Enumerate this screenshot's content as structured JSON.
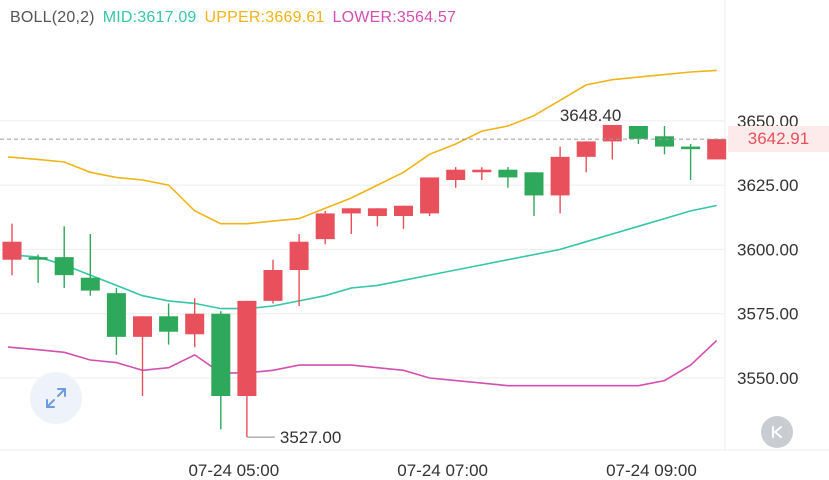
{
  "legend": {
    "name": "BOLL(20,2)",
    "mid": "MID:3617.09",
    "upper": "UPPER:3669.61",
    "lower": "LOWER:3564.57"
  },
  "last_price": "3642.91",
  "high_label": "3648.40",
  "low_label": "3527.00",
  "icons": {
    "expand": "expand-arrows-icon",
    "collapse": "collapse-k-icon"
  },
  "colors": {
    "up": "#e8505b",
    "down": "#2ea85a",
    "mid": "#34c6a8",
    "upper": "#f0b418",
    "lower": "#d44fb0",
    "axis_text": "#333333",
    "grid": "#eeeeee"
  },
  "chart_data": {
    "type": "candlestick",
    "indicator": "BOLL(20,2)",
    "y_ticks": [
      3550.0,
      3575.0,
      3600.0,
      3625.0,
      3650.0
    ],
    "y_tick_labels": [
      "3550.00",
      "3575.00",
      "3600.00",
      "3625.00",
      "3650.00"
    ],
    "ylim": [
      3522,
      3697
    ],
    "x_tick_labels": [
      {
        "index": 8.5,
        "label": "07-24 05:00"
      },
      {
        "index": 16.5,
        "label": "07-24 07:00"
      },
      {
        "index": 24.5,
        "label": "07-24 09:00"
      }
    ],
    "candles": [
      {
        "o": 3596,
        "h": 3610,
        "l": 3590,
        "c": 3603
      },
      {
        "o": 3597,
        "h": 3598,
        "l": 3587,
        "c": 3596
      },
      {
        "o": 3597,
        "h": 3609,
        "l": 3585,
        "c": 3590
      },
      {
        "o": 3589,
        "h": 3606,
        "l": 3582,
        "c": 3584
      },
      {
        "o": 3583,
        "h": 3585,
        "l": 3559,
        "c": 3566
      },
      {
        "o": 3566,
        "h": 3574,
        "l": 3543,
        "c": 3574
      },
      {
        "o": 3574,
        "h": 3579,
        "l": 3563,
        "c": 3568
      },
      {
        "o": 3567,
        "h": 3581,
        "l": 3562,
        "c": 3575
      },
      {
        "o": 3575,
        "h": 3576,
        "l": 3530,
        "c": 3543
      },
      {
        "o": 3543,
        "h": 3580,
        "l": 3527,
        "c": 3580
      },
      {
        "o": 3580,
        "h": 3596,
        "l": 3579,
        "c": 3592
      },
      {
        "o": 3592,
        "h": 3606,
        "l": 3578,
        "c": 3603
      },
      {
        "o": 3604,
        "h": 3615,
        "l": 3602,
        "c": 3614
      },
      {
        "o": 3614,
        "h": 3616,
        "l": 3606,
        "c": 3616
      },
      {
        "o": 3613,
        "h": 3616,
        "l": 3609,
        "c": 3616
      },
      {
        "o": 3613,
        "h": 3617,
        "l": 3608,
        "c": 3617
      },
      {
        "o": 3614,
        "h": 3628,
        "l": 3613,
        "c": 3628
      },
      {
        "o": 3627,
        "h": 3632,
        "l": 3624,
        "c": 3631
      },
      {
        "o": 3630,
        "h": 3632,
        "l": 3627,
        "c": 3631
      },
      {
        "o": 3631,
        "h": 3632,
        "l": 3624,
        "c": 3628
      },
      {
        "o": 3630,
        "h": 3630,
        "l": 3613,
        "c": 3621
      },
      {
        "o": 3621,
        "h": 3640,
        "l": 3614,
        "c": 3636
      },
      {
        "o": 3636,
        "h": 3642,
        "l": 3630,
        "c": 3642
      },
      {
        "o": 3642,
        "h": 3648.4,
        "l": 3635,
        "c": 3648.4
      },
      {
        "o": 3648,
        "h": 3648,
        "l": 3641,
        "c": 3643
      },
      {
        "o": 3644,
        "h": 3648,
        "l": 3637,
        "c": 3640
      },
      {
        "o": 3640,
        "h": 3641,
        "l": 3627,
        "c": 3639
      },
      {
        "o": 3635,
        "h": 3643,
        "l": 3636,
        "c": 3642.91
      }
    ],
    "mid": [
      3598,
      3597,
      3594,
      3590,
      3586,
      3582,
      3580,
      3579,
      3577,
      3577,
      3578,
      3580,
      3582,
      3585,
      3586,
      3588,
      3590,
      3592,
      3594,
      3596,
      3598,
      3600,
      3603,
      3606,
      3609,
      3612,
      3615,
      3617.09
    ],
    "upper": [
      3636,
      3635,
      3634,
      3630,
      3628,
      3627,
      3625,
      3615,
      3610,
      3610,
      3611,
      3612,
      3616,
      3620,
      3625,
      3630,
      3637,
      3641,
      3646,
      3648,
      3652,
      3658,
      3664,
      3666,
      3667,
      3668,
      3669,
      3669.61
    ],
    "lower": [
      3562,
      3561,
      3560,
      3557,
      3556,
      3553,
      3554,
      3559,
      3552,
      3552,
      3553,
      3555,
      3555,
      3555,
      3554,
      3553,
      3550,
      3549,
      3548,
      3547,
      3547,
      3547,
      3547,
      3547,
      3547,
      3549,
      3555,
      3564.57
    ]
  }
}
